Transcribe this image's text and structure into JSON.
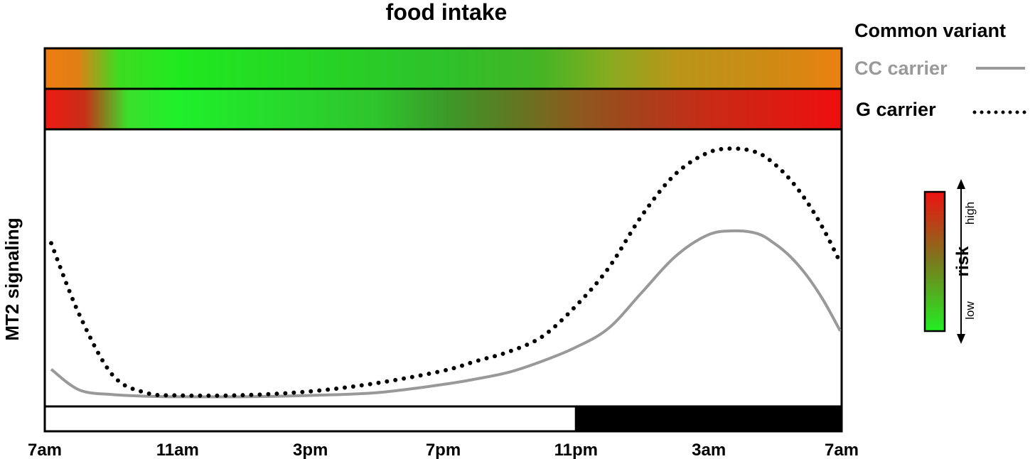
{
  "chart_data": {
    "type": "line",
    "title": "food intake",
    "ylabel": "MT2 signaling",
    "xlabel": "",
    "x_ticks": [
      "7am",
      "11am",
      "3pm",
      "7pm",
      "11pm",
      "3am",
      "7am"
    ],
    "x_tick_hours": [
      0,
      4,
      8,
      12,
      16,
      20,
      24
    ],
    "xlim": [
      0,
      24
    ],
    "ylim": [
      0,
      100
    ],
    "grid": false,
    "legend": {
      "placement": "top-right",
      "title": "Common variant"
    },
    "series": [
      {
        "name": "CC carrier",
        "style": "solid",
        "color": "#999999",
        "x": [
          0.15,
          1,
          2,
          3,
          4,
          6,
          8,
          10,
          12,
          13,
          14,
          15,
          16,
          17,
          18,
          19,
          20,
          20.8,
          21.5,
          22,
          22.5,
          23,
          23.5,
          24
        ],
        "y": [
          13,
          5.5,
          3.8,
          3.2,
          3.0,
          3.0,
          3.5,
          4.5,
          7.5,
          9.5,
          12,
          16,
          21,
          28,
          41,
          54,
          62,
          63.5,
          62.5,
          59,
          54,
          47,
          38,
          27
        ]
      },
      {
        "name": "G carrier",
        "style": "dotted",
        "color": "#000000",
        "x": [
          0.15,
          1,
          2,
          3,
          4,
          6,
          8,
          10,
          12,
          13,
          14,
          15,
          16,
          17,
          18,
          19,
          20,
          20.8,
          21.5,
          22,
          22.5,
          23,
          23.5,
          24
        ],
        "y": [
          59,
          33,
          11,
          4.5,
          3.5,
          3.6,
          5,
          8,
          12.5,
          16,
          19.5,
          25,
          36,
          50,
          69,
          84,
          92,
          93.5,
          92,
          88,
          82,
          74,
          64,
          52
        ]
      }
    ],
    "risk_bars": [
      {
        "name": "CC carrier",
        "stops": [
          {
            "x": 0,
            "color": "#ee7d12"
          },
          {
            "x": 1,
            "color": "#e07f15"
          },
          {
            "x": 2.2,
            "color": "#3edb1f"
          },
          {
            "x": 4,
            "color": "#1fe91f"
          },
          {
            "x": 12,
            "color": "#2dc12a"
          },
          {
            "x": 15,
            "color": "#45b524"
          },
          {
            "x": 17,
            "color": "#88ab20"
          },
          {
            "x": 19,
            "color": "#b99518"
          },
          {
            "x": 22,
            "color": "#cf8a14"
          },
          {
            "x": 24,
            "color": "#ec800f"
          }
        ]
      },
      {
        "name": "G carrier",
        "stops": [
          {
            "x": 0,
            "color": "#ee1a12"
          },
          {
            "x": 1.2,
            "color": "#c72f18"
          },
          {
            "x": 2.5,
            "color": "#3be02a"
          },
          {
            "x": 4,
            "color": "#1ff02a"
          },
          {
            "x": 10,
            "color": "#2fc42d"
          },
          {
            "x": 12,
            "color": "#3a9b29"
          },
          {
            "x": 14,
            "color": "#5e7a22"
          },
          {
            "x": 16,
            "color": "#8c5a1e"
          },
          {
            "x": 18,
            "color": "#a8401c"
          },
          {
            "x": 20,
            "color": "#c82b16"
          },
          {
            "x": 24,
            "color": "#ee0e0e"
          }
        ]
      }
    ],
    "light_dark": {
      "light": [
        0,
        16
      ],
      "dark": [
        16,
        24
      ]
    },
    "risk_scale": {
      "label": "risk",
      "high": "high",
      "low": "low",
      "high_color": "#ee1111",
      "low_color": "#22ee22"
    }
  }
}
